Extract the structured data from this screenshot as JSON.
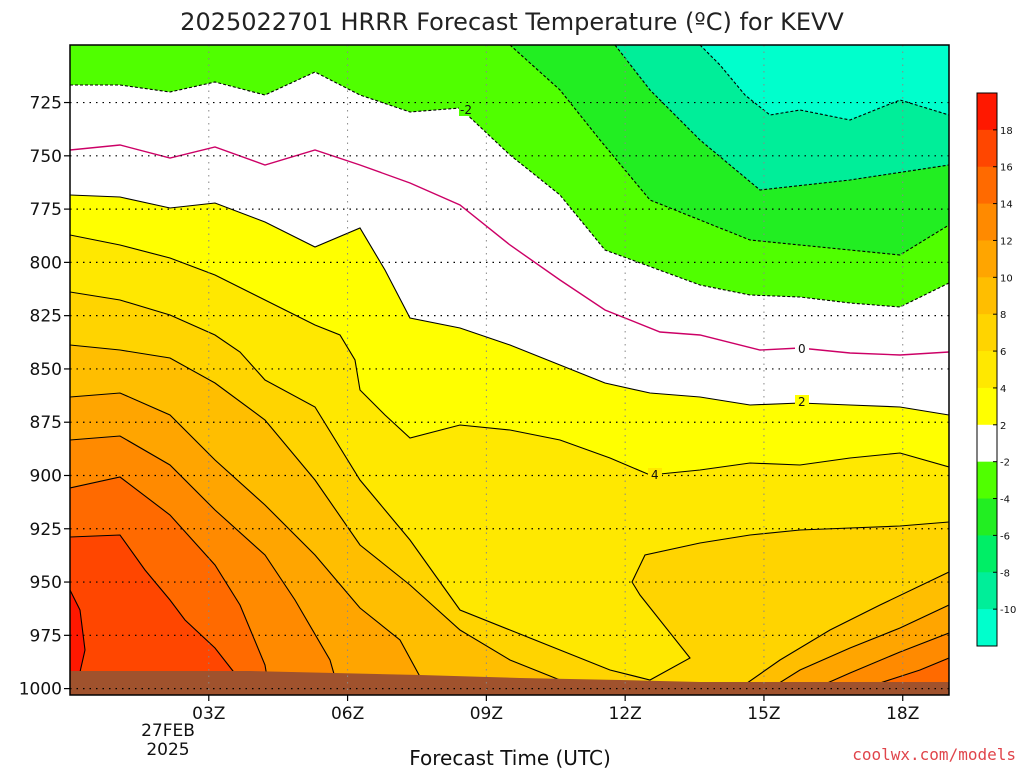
{
  "chart_data": {
    "type": "heatmap",
    "title": "2025022701 HRRR Forecast Temperature (ºC) for KEVV",
    "xlabel": "Forecast Time (UTC)",
    "ylabel": "",
    "x_ticks": [
      "03Z",
      "06Z",
      "09Z",
      "12Z",
      "15Z",
      "18Z"
    ],
    "x_date_label": [
      "27FEB",
      "2025"
    ],
    "x_range_hours_utc": [
      0,
      19
    ],
    "y_ticks": [
      725,
      750,
      775,
      800,
      825,
      850,
      875,
      900,
      925,
      950,
      975,
      1000
    ],
    "y_range_hpa": [
      1003,
      698
    ],
    "y_axis_inverted": true,
    "grid": true,
    "legend": "right colorbar",
    "colorbar_ticks": [
      18,
      16,
      14,
      12,
      10,
      8,
      6,
      4,
      2,
      -2,
      -4,
      -6,
      -8,
      -10
    ],
    "colorbar_colors": [
      "#ff1800",
      "#ff4600",
      "#ff6a00",
      "#ff8a00",
      "#ffa500",
      "#ffbe00",
      "#ffd400",
      "#ffe800",
      "#ffff00",
      "#ffffff",
      "#50ff00",
      "#22ee22",
      "#00ee66",
      "#00ee99",
      "#00ffcc"
    ],
    "contour_labels": [
      "-2",
      "0",
      "2",
      "4"
    ],
    "contour_colors": {
      "zero_line": "#cc0066",
      "other": "#000000"
    },
    "ground_color": "#a0522d",
    "credit": "coolwx.com/models"
  }
}
